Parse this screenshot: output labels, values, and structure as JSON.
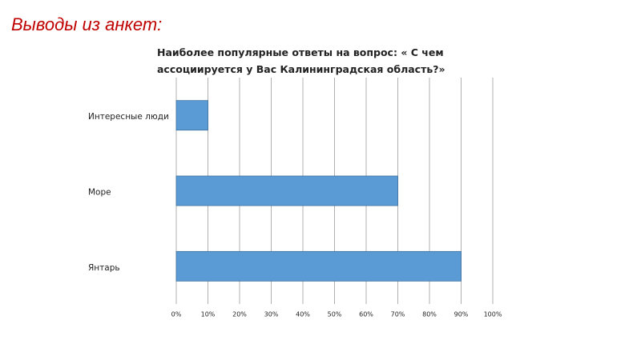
{
  "slide_title": "Выводы из анкет:",
  "chart_data": {
    "type": "hbar",
    "title": "Наиболее популярные ответы на вопрос: « С чем ассоциируется у Вас Калининградская область?»",
    "categories": [
      "Интересные люди",
      "Море",
      "Янтарь"
    ],
    "values": [
      10,
      70,
      90
    ],
    "color": "#5b9bd5",
    "xlim": [
      0,
      100
    ],
    "xticks": [
      {
        "value": 0,
        "label": "0%"
      },
      {
        "value": 10,
        "label": "10%"
      },
      {
        "value": 20,
        "label": "20%"
      },
      {
        "value": 30,
        "label": "30%"
      },
      {
        "value": 40,
        "label": "40%"
      },
      {
        "value": 50,
        "label": "50%"
      },
      {
        "value": 60,
        "label": "60%"
      },
      {
        "value": 70,
        "label": "70%"
      },
      {
        "value": 80,
        "label": "80%"
      },
      {
        "value": 90,
        "label": "90%"
      },
      {
        "value": 100,
        "label": "100%"
      }
    ],
    "grid": true
  }
}
